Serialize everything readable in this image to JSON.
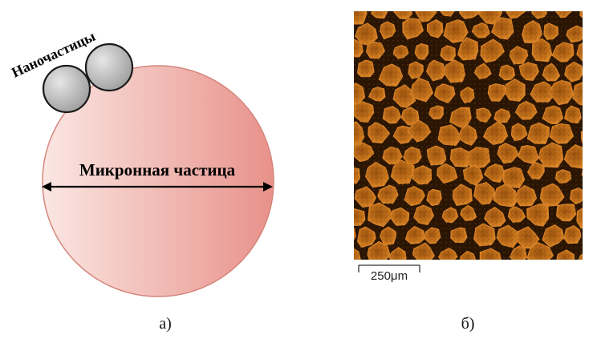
{
  "diagram": {
    "nano_label": "Наночастицы",
    "micro_label": "Микронная частица",
    "panel_a_label": "а)"
  },
  "micrograph": {
    "scale_label": "250μm",
    "panel_b_label": "б)"
  },
  "colors": {
    "micro_fill_light": "#fbe4e1",
    "micro_fill_dark": "#e9948c",
    "micro_stroke": "#d98c80",
    "nano_fill": "#bdbdbd",
    "nano_stroke": "#1a1a1a",
    "micrograph_bg": "#2a1503",
    "grain_color": "#c4701a"
  }
}
